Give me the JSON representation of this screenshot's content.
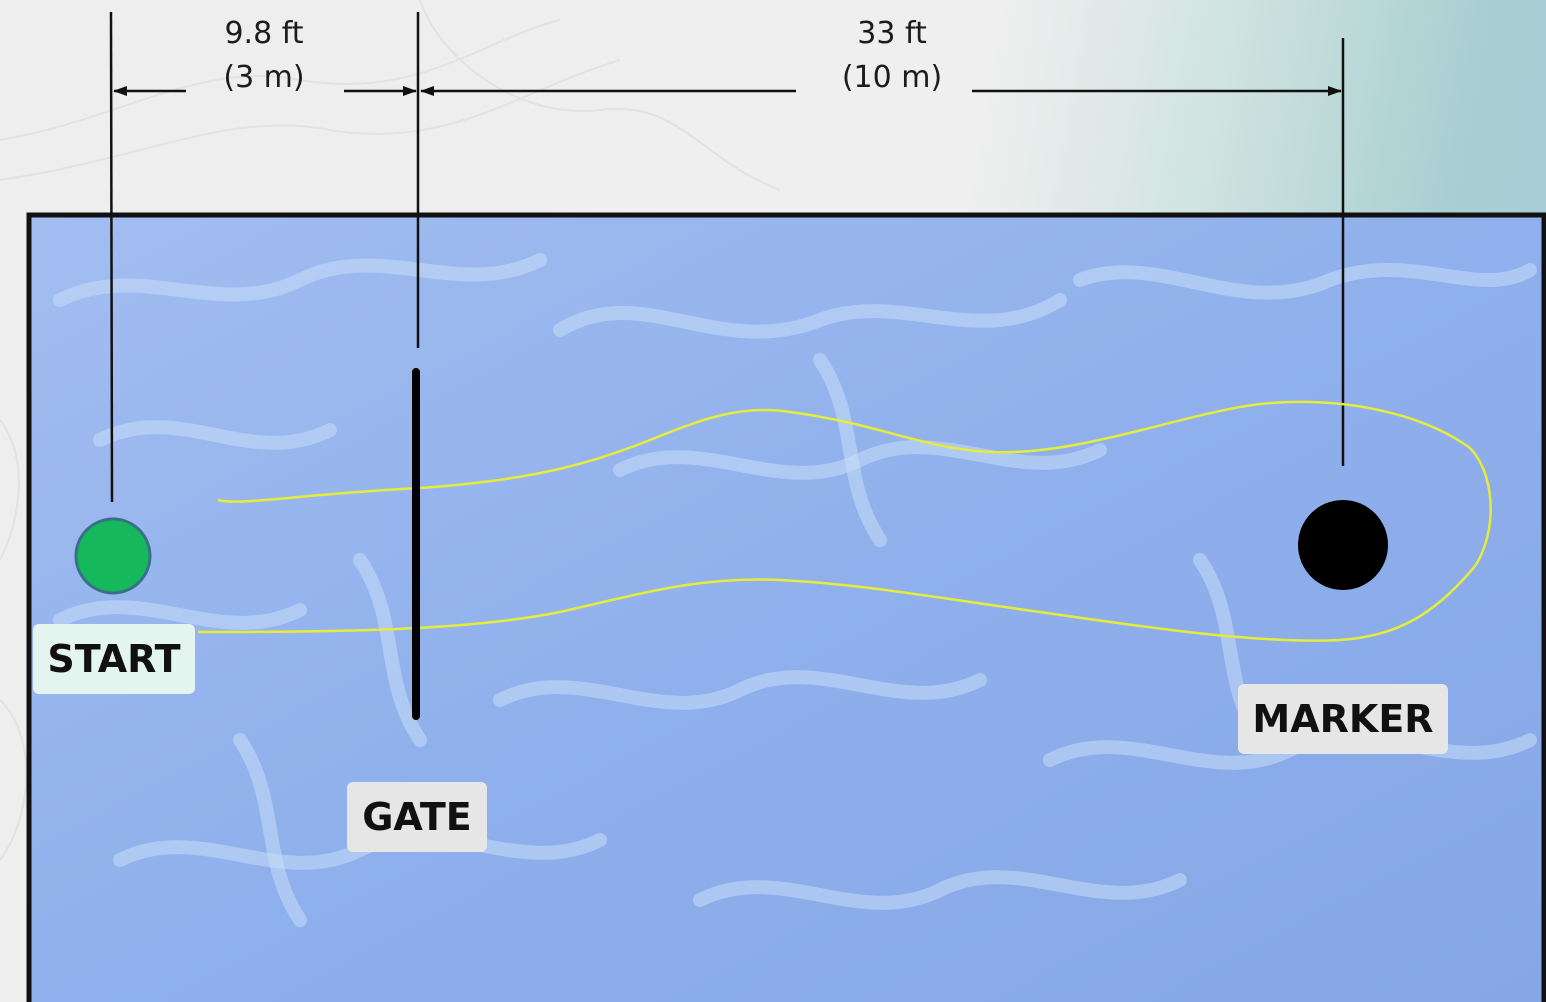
{
  "dimensions": {
    "start_to_gate": {
      "ft": "9.8 ft",
      "m": "(3 m)"
    },
    "gate_to_marker": {
      "ft": "33 ft",
      "m": "(10 m)"
    }
  },
  "labels": {
    "start": "START",
    "gate": "GATE",
    "marker": "MARKER"
  },
  "colors": {
    "pool_water": "#90aeea",
    "pool_border": "#111111",
    "start_marker": "#16b85c",
    "marker": "#000000",
    "swim_path": "#e6ec3a",
    "dimension_lines": "#111111"
  }
}
